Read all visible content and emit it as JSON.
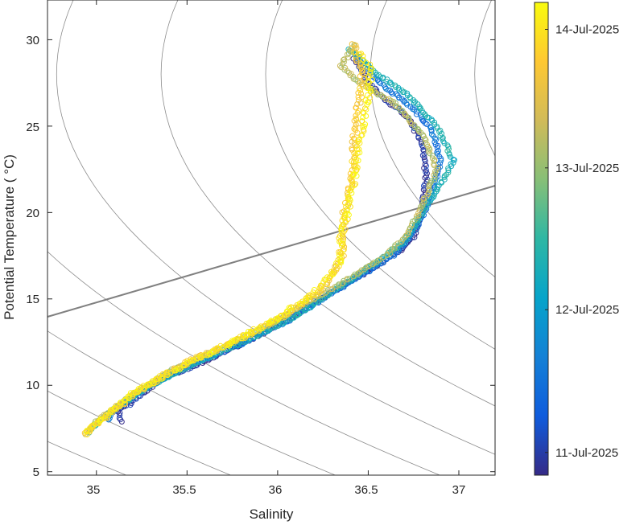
{
  "chart_data": {
    "type": "scatter",
    "title": "",
    "xlabel": "Salinity",
    "ylabel": "Potential Temperature ( °C)",
    "xlim": [
      34.73,
      37.2
    ],
    "ylim": [
      4.8,
      32.3
    ],
    "xticks": [
      "35",
      "35.5",
      "36",
      "36.5",
      "37"
    ],
    "yticks": [
      "5",
      "10",
      "15",
      "20",
      "25",
      "30"
    ],
    "grid": false,
    "background_isopycnals": true,
    "colormap": "parula",
    "colorbar": {
      "position": "right",
      "ticks": [
        "11-Jul-2025",
        "12-Jul-2025",
        "13-Jul-2025",
        "14-Jul-2025"
      ],
      "tick_fractions": [
        0.048,
        0.35,
        0.65,
        0.943
      ]
    },
    "marker": "open-circle",
    "profiles": [
      {
        "color_fraction": 0.03,
        "profile_type": "normal",
        "points": [
          [
            35.14,
            7.9
          ],
          [
            35.12,
            8.6
          ],
          [
            35.05,
            8.3
          ],
          [
            35.18,
            8.9
          ],
          [
            35.35,
            10.3
          ],
          [
            35.6,
            11.4
          ],
          [
            35.9,
            12.9
          ],
          [
            36.1,
            14.1
          ],
          [
            36.3,
            15.4
          ],
          [
            36.5,
            16.6
          ],
          [
            36.7,
            18.0
          ],
          [
            36.75,
            18.6
          ],
          [
            36.8,
            20.2
          ],
          [
            36.82,
            22.0
          ],
          [
            36.8,
            24.0
          ],
          [
            36.72,
            25.5
          ],
          [
            36.6,
            26.5
          ],
          [
            36.5,
            27.5
          ],
          [
            36.45,
            28.5
          ],
          [
            36.42,
            29.0
          ]
        ]
      },
      {
        "color_fraction": 0.2,
        "profile_type": "normal",
        "points": [
          [
            35.06,
            8.0
          ],
          [
            35.1,
            8.6
          ],
          [
            35.25,
            9.7
          ],
          [
            35.5,
            11.1
          ],
          [
            35.8,
            12.4
          ],
          [
            36.05,
            13.7
          ],
          [
            36.25,
            15.0
          ],
          [
            36.45,
            16.3
          ],
          [
            36.65,
            17.6
          ],
          [
            36.76,
            19.0
          ],
          [
            36.85,
            21.0
          ],
          [
            36.9,
            23.0
          ],
          [
            36.85,
            24.8
          ],
          [
            36.75,
            26.0
          ],
          [
            36.6,
            27.2
          ],
          [
            36.5,
            28.2
          ],
          [
            36.42,
            29.3
          ]
        ]
      },
      {
        "color_fraction": 0.45,
        "profile_type": "normal",
        "points": [
          [
            34.96,
            7.3
          ],
          [
            35.0,
            7.8
          ],
          [
            35.1,
            8.6
          ],
          [
            35.3,
            10.0
          ],
          [
            35.55,
            11.3
          ],
          [
            35.85,
            12.7
          ],
          [
            36.1,
            14.0
          ],
          [
            36.3,
            15.4
          ],
          [
            36.5,
            16.8
          ],
          [
            36.7,
            18.3
          ],
          [
            36.8,
            20.0
          ],
          [
            36.92,
            22.0
          ],
          [
            36.97,
            23.0
          ],
          [
            36.88,
            25.0
          ],
          [
            36.72,
            26.8
          ],
          [
            36.55,
            28.0
          ],
          [
            36.45,
            29.0
          ],
          [
            36.38,
            29.5
          ]
        ]
      },
      {
        "color_fraction": 0.7,
        "profile_type": "normal",
        "points": [
          [
            34.94,
            7.2
          ],
          [
            35.0,
            7.9
          ],
          [
            35.15,
            9.1
          ],
          [
            35.4,
            10.8
          ],
          [
            35.7,
            12.2
          ],
          [
            35.95,
            13.5
          ],
          [
            36.2,
            15.0
          ],
          [
            36.4,
            16.2
          ],
          [
            36.6,
            17.5
          ],
          [
            36.72,
            18.8
          ],
          [
            36.8,
            20.5
          ],
          [
            36.88,
            22.5
          ],
          [
            36.8,
            24.5
          ],
          [
            36.65,
            26.3
          ],
          [
            36.45,
            27.5
          ],
          [
            36.35,
            28.5
          ],
          [
            36.43,
            29.8
          ]
        ]
      },
      {
        "color_fraction": 0.87,
        "profile_type": "intrusion",
        "points": [
          [
            34.94,
            7.2
          ],
          [
            35.05,
            8.2
          ],
          [
            35.25,
            9.8
          ],
          [
            35.5,
            11.3
          ],
          [
            35.8,
            12.7
          ],
          [
            36.05,
            14.1
          ],
          [
            36.25,
            15.6
          ],
          [
            36.32,
            16.7
          ],
          [
            36.36,
            17.6
          ],
          [
            36.36,
            18.6
          ],
          [
            36.37,
            20.0
          ],
          [
            36.39,
            21.0
          ],
          [
            36.42,
            22.5
          ],
          [
            36.42,
            24.0
          ],
          [
            36.44,
            25.5
          ],
          [
            36.45,
            26.5
          ],
          [
            36.47,
            28.0
          ],
          [
            36.44,
            29.0
          ],
          [
            36.42,
            29.9
          ]
        ]
      },
      {
        "color_fraction": 0.97,
        "profile_type": "intrusion",
        "points": [
          [
            34.94,
            7.2
          ],
          [
            35.02,
            8.0
          ],
          [
            35.2,
            9.5
          ],
          [
            35.45,
            11.0
          ],
          [
            35.75,
            12.5
          ],
          [
            36.0,
            13.9
          ],
          [
            36.2,
            15.3
          ],
          [
            36.3,
            16.5
          ],
          [
            36.35,
            17.3
          ],
          [
            36.35,
            18.5
          ],
          [
            36.38,
            19.8
          ],
          [
            36.42,
            21.8
          ],
          [
            36.44,
            23.5
          ],
          [
            36.47,
            25.0
          ],
          [
            36.5,
            26.8
          ],
          [
            36.52,
            28.3
          ],
          [
            36.45,
            29.3
          ]
        ]
      }
    ]
  }
}
